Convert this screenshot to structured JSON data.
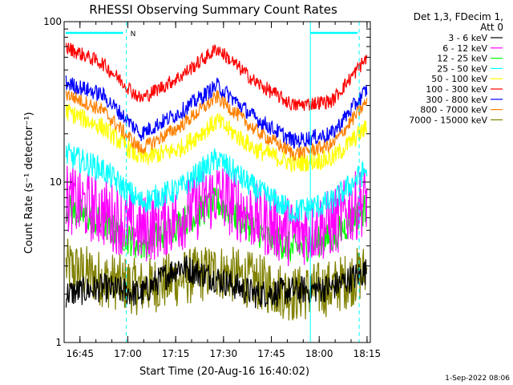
{
  "chart_data": {
    "type": "line",
    "title": "RHESSI Observing Summary Count Rates",
    "xlabel": "Start Time (20-Aug-16 16:40:02)",
    "ylabel": "Count Rate (s⁻¹ detector⁻¹)",
    "yscale": "log",
    "ylim": [
      1,
      100
    ],
    "y_ticks": [
      "1",
      "10",
      "100"
    ],
    "x_minutes_range": [
      0,
      96
    ],
    "x_ticks": [
      {
        "label": "16:45",
        "minutes": 4.97
      },
      {
        "label": "17:00",
        "minutes": 19.97
      },
      {
        "label": "17:15",
        "minutes": 34.97
      },
      {
        "label": "17:30",
        "minutes": 49.97
      },
      {
        "label": "17:45",
        "minutes": 64.97
      },
      {
        "label": "18:00",
        "minutes": 79.97
      },
      {
        "label": "18:15",
        "minutes": 94.97
      }
    ],
    "legend_title": [
      "Det 1,3, FDecim 1,",
      "Att 0"
    ],
    "legend_position": "right",
    "grid": false,
    "series": [
      {
        "name": "3 - 6 keV",
        "color": "#000000",
        "x": [
          0,
          12,
          24,
          36,
          48,
          60,
          72,
          84,
          95
        ],
        "values": [
          2.0,
          2.2,
          2.0,
          3.0,
          2.5,
          2.0,
          2.1,
          2.2,
          2.8
        ]
      },
      {
        "name": "6 - 12 keV",
        "color": "#ff00ff",
        "x": [
          0,
          12,
          24,
          36,
          48,
          60,
          72,
          84,
          95
        ],
        "values": [
          8.0,
          6.5,
          5.0,
          6.0,
          8.5,
          6.0,
          4.8,
          5.5,
          8.0
        ]
      },
      {
        "name": "12 - 25 keV",
        "color": "#00ff00",
        "x": [
          0,
          12,
          24,
          36,
          48,
          60,
          72,
          84,
          95
        ],
        "values": [
          7.0,
          5.5,
          4.0,
          5.5,
          7.5,
          5.0,
          3.8,
          4.5,
          7.0
        ]
      },
      {
        "name": "25 - 50 keV",
        "color": "#00ffff",
        "x": [
          0,
          12,
          24,
          36,
          48,
          60,
          72,
          84,
          95
        ],
        "values": [
          15,
          12,
          7.5,
          9,
          14,
          9,
          6.5,
          7.5,
          12
        ]
      },
      {
        "name": "50 - 100 keV",
        "color": "#ffff00",
        "x": [
          0,
          12,
          24,
          36,
          48,
          60,
          72,
          84,
          95
        ],
        "values": [
          28,
          22,
          14,
          16,
          24,
          16,
          13,
          14,
          22
        ]
      },
      {
        "name": "100 - 300 keV",
        "color": "#ff0000",
        "x": [
          0,
          12,
          24,
          36,
          48,
          60,
          72,
          84,
          95
        ],
        "values": [
          70,
          55,
          33,
          45,
          68,
          42,
          30,
          32,
          60
        ]
      },
      {
        "name": "300 - 800 keV",
        "color": "#0000ff",
        "x": [
          0,
          12,
          24,
          36,
          48,
          60,
          72,
          84,
          95
        ],
        "values": [
          42,
          35,
          20,
          27,
          40,
          25,
          18,
          20,
          38
        ]
      },
      {
        "name": "800 - 7000 keV",
        "color": "#ff8000",
        "x": [
          0,
          12,
          24,
          36,
          48,
          60,
          72,
          84,
          95
        ],
        "values": [
          36,
          28,
          16,
          22,
          34,
          21,
          15,
          17,
          32
        ]
      },
      {
        "name": "7000 - 15000 keV",
        "color": "#808000",
        "x": [
          0,
          12,
          24,
          36,
          48,
          60,
          72,
          84,
          95
        ],
        "values": [
          3.0,
          2.5,
          2.2,
          2.5,
          2.8,
          2.4,
          2.0,
          2.2,
          2.8
        ]
      }
    ],
    "annotations": [
      {
        "text": "N"
      }
    ]
  },
  "footer": {
    "timestamp": "1-Sep-2022 08:06"
  }
}
